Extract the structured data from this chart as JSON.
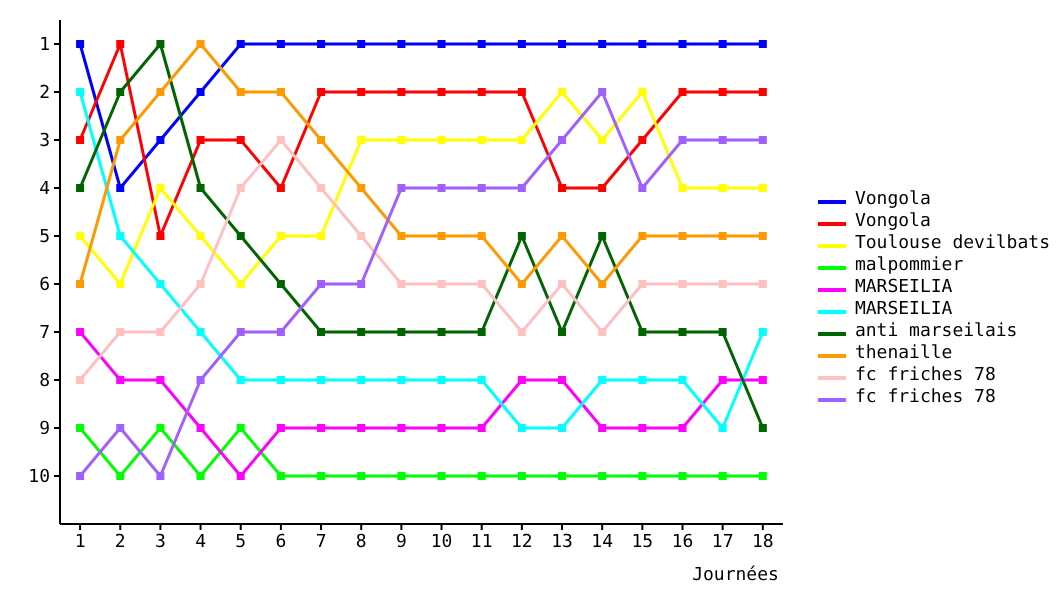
{
  "chart_data": {
    "type": "line",
    "xlabel": "Journées",
    "x": [
      1,
      2,
      3,
      4,
      5,
      6,
      7,
      8,
      9,
      10,
      11,
      12,
      13,
      14,
      15,
      16,
      17,
      18
    ],
    "xlim": [
      0.5,
      18.5
    ],
    "xticks": [
      1,
      2,
      3,
      4,
      5,
      6,
      7,
      8,
      9,
      10,
      11,
      12,
      13,
      14,
      15,
      16,
      17,
      18
    ],
    "ylim": [
      11,
      0.5
    ],
    "yticks": [
      1,
      2,
      3,
      4,
      5,
      6,
      7,
      8,
      9,
      10
    ],
    "grid": false,
    "legend": "right",
    "marker": "square",
    "line_style": "solid",
    "series": [
      {
        "name": "Vongola",
        "color": "#0000ff",
        "values": [
          1,
          4,
          3,
          2,
          1,
          1,
          1,
          1,
          1,
          1,
          1,
          1,
          1,
          1,
          1,
          1,
          1,
          1
        ]
      },
      {
        "name": "Vongola",
        "color": "#ff0000",
        "values": [
          3,
          1,
          5,
          3,
          3,
          4,
          2,
          2,
          2,
          2,
          2,
          2,
          4,
          4,
          3,
          2,
          2,
          2
        ]
      },
      {
        "name": "Toulouse devilbats",
        "color": "#ffff00",
        "values": [
          5,
          6,
          4,
          5,
          6,
          5,
          5,
          3,
          3,
          3,
          3,
          3,
          2,
          3,
          2,
          4,
          4,
          4
        ]
      },
      {
        "name": "malpommier",
        "color": "#00ff00",
        "values": [
          9,
          10,
          9,
          10,
          9,
          10,
          10,
          10,
          10,
          10,
          10,
          10,
          10,
          10,
          10,
          10,
          10,
          10
        ]
      },
      {
        "name": "MARSEILIA",
        "color": "#ff00ff",
        "values": [
          7,
          8,
          8,
          9,
          10,
          9,
          9,
          9,
          9,
          9,
          9,
          8,
          8,
          9,
          9,
          9,
          8,
          8
        ]
      },
      {
        "name": "MARSEILIA",
        "color": "#00ffff",
        "values": [
          2,
          5,
          6,
          7,
          8,
          8,
          8,
          8,
          8,
          8,
          8,
          9,
          9,
          8,
          8,
          8,
          9,
          7
        ]
      },
      {
        "name": "anti marseilais",
        "color": "#006400",
        "values": [
          4,
          2,
          1,
          4,
          5,
          6,
          7,
          7,
          7,
          7,
          7,
          5,
          7,
          5,
          7,
          7,
          7,
          9
        ]
      },
      {
        "name": "thenaille",
        "color": "#ff9900",
        "values": [
          6,
          3,
          2,
          1,
          2,
          2,
          3,
          4,
          5,
          5,
          5,
          6,
          5,
          6,
          5,
          5,
          5,
          5
        ]
      },
      {
        "name": "fc friches 78",
        "color": "#ffc0c0",
        "values": [
          8,
          7,
          7,
          6,
          4,
          3,
          4,
          5,
          6,
          6,
          6,
          7,
          6,
          7,
          6,
          6,
          6,
          6
        ]
      },
      {
        "name": "fc friches 78",
        "color": "#a060ff",
        "values": [
          10,
          9,
          10,
          8,
          7,
          7,
          6,
          6,
          4,
          4,
          4,
          4,
          3,
          2,
          4,
          3,
          3,
          3
        ]
      }
    ]
  }
}
